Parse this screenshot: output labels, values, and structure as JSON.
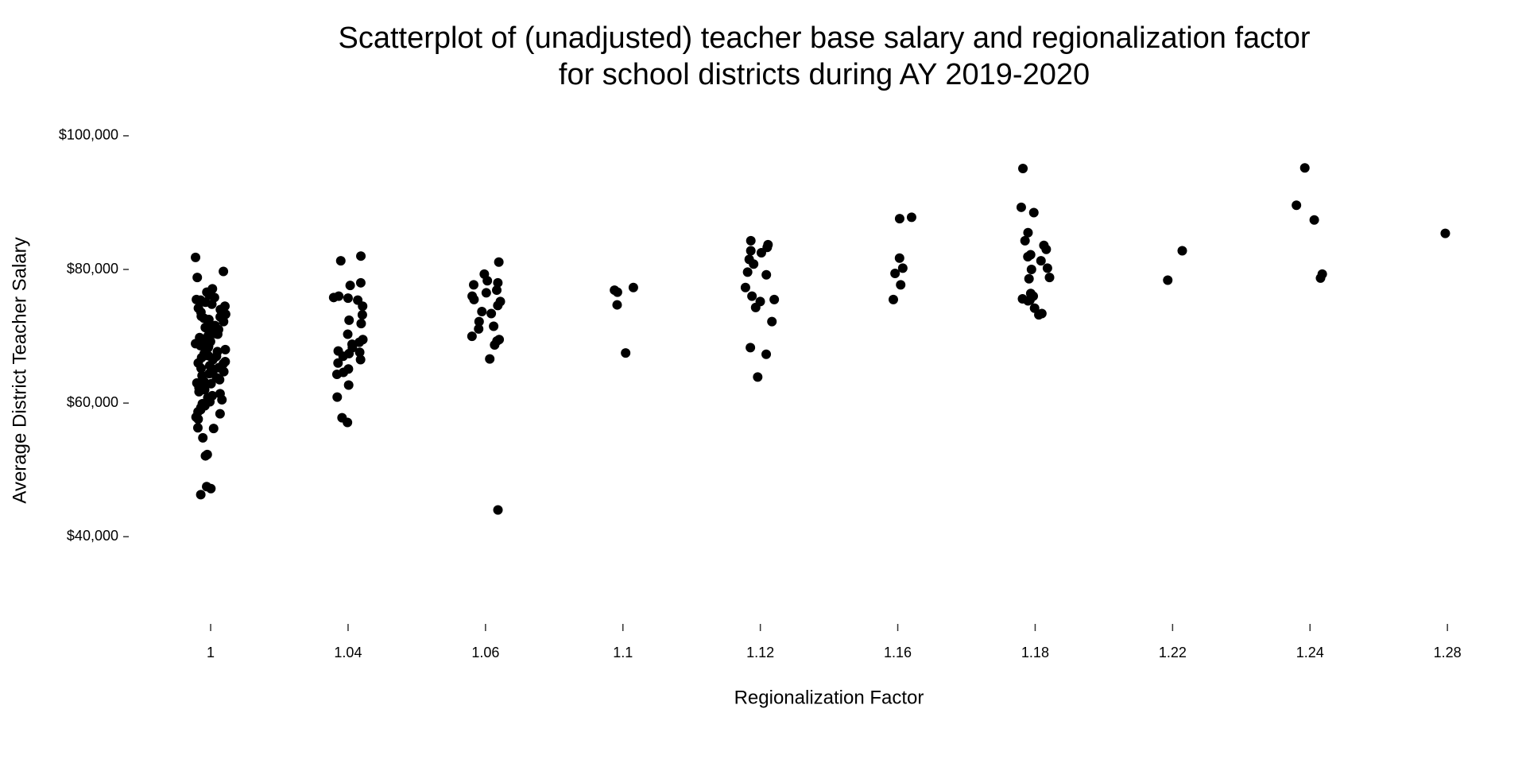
{
  "chart_data": {
    "type": "scatter",
    "title": "Scatterplot of (unadjusted) teacher base salary and regionalization factor",
    "subtitle": "for school districts during AY 2019-2020",
    "x_label": "Regionalization Factor",
    "y_label": "Average District Teacher Salary",
    "color": "#000000",
    "jitter": true,
    "grid": false,
    "categories": [
      "1",
      "1.04",
      "1.06",
      "1.1",
      "1.12",
      "1.16",
      "1.18",
      "1.22",
      "1.24",
      "1.28"
    ],
    "values": [
      [
        81800,
        79700,
        78800,
        77100,
        76600,
        76200,
        75800,
        75400,
        75100,
        74800,
        74500,
        74000,
        73600,
        73300,
        72900,
        72500,
        72200,
        71900,
        71600,
        71300,
        71000,
        70700,
        70400,
        70100,
        69800,
        69500,
        69200,
        68900,
        68600,
        68300,
        68000,
        67700,
        67400,
        67100,
        66800,
        66500,
        66200,
        65900,
        65600,
        65300,
        65000,
        64700,
        64400,
        64100,
        63800,
        63500,
        63200,
        62900,
        62600,
        62300,
        62000,
        61700,
        61400,
        61100,
        60800,
        60500,
        60200,
        59900,
        59600,
        59300,
        59000,
        58700,
        58400,
        57900,
        57600,
        56300,
        56200,
        54800,
        52300,
        52100,
        47500,
        47200,
        46300,
        75500,
        73000,
        71200,
        69000,
        67000,
        65200,
        63000,
        70300,
        68500,
        66000,
        72700,
        74200
      ],
      [
        82000,
        81300,
        78000,
        77600,
        76000,
        75800,
        75400,
        74500,
        73200,
        72400,
        71900,
        70300,
        69500,
        68800,
        68300,
        67800,
        67400,
        67000,
        66500,
        66000,
        65100,
        64600,
        64300,
        62700,
        60900,
        57800,
        57100,
        67600,
        69100,
        75700
      ],
      [
        81100,
        79300,
        78300,
        78000,
        77700,
        76900,
        76500,
        76000,
        75500,
        75200,
        74600,
        73700,
        73400,
        72200,
        71500,
        71100,
        70000,
        69500,
        69300,
        68700,
        66600,
        44000
      ],
      [
        77300,
        76900,
        76600,
        74700,
        67500
      ],
      [
        84300,
        83700,
        83300,
        82800,
        82500,
        81500,
        80800,
        79600,
        79200,
        77300,
        76000,
        75500,
        75200,
        74300,
        72200,
        68300,
        67300,
        63900
      ],
      [
        87800,
        87600,
        81700,
        80200,
        79400,
        77700,
        75500
      ],
      [
        95100,
        89300,
        88500,
        85500,
        84300,
        83600,
        83000,
        82200,
        81900,
        81300,
        80200,
        80000,
        78800,
        78600,
        76400,
        76000,
        75600,
        75400,
        75300,
        74200,
        73400,
        73200
      ],
      [
        82800,
        78400
      ],
      [
        95200,
        89600,
        87400,
        79300,
        78700
      ],
      [
        85400
      ]
    ],
    "ylim": [
      26000,
      102600
    ],
    "yticks": [
      {
        "value": 40000,
        "label": "$40,000"
      },
      {
        "value": 60000,
        "label": "$60,000"
      },
      {
        "value": 80000,
        "label": "$80,000"
      },
      {
        "value": 100000,
        "label": "$100,000"
      }
    ]
  }
}
